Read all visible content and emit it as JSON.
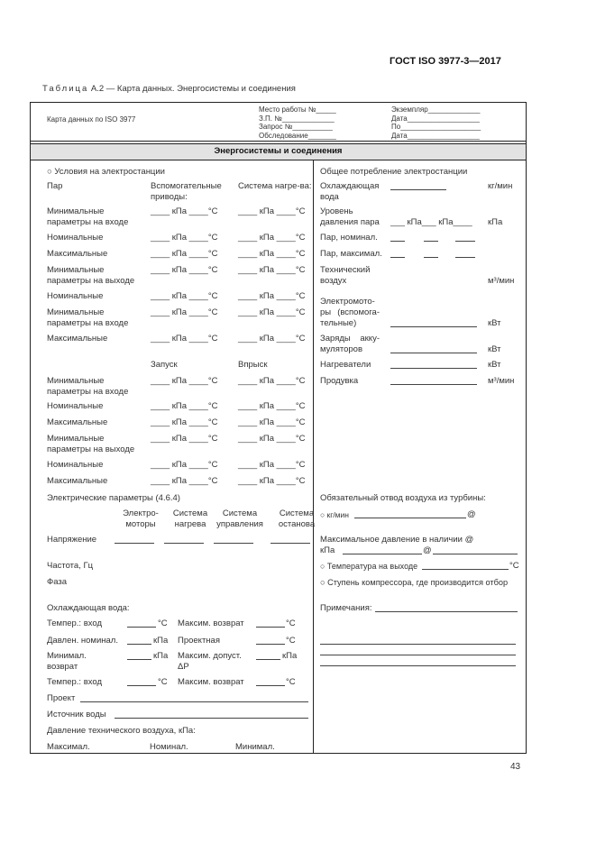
{
  "doc_id": "ГОСТ ISO 3977-3—2017",
  "caption": {
    "prefix": "Таблица",
    "text": "А.2 — Карта данных. Энергосистемы и соединения"
  },
  "header": {
    "card_label": "Карта данных по ISO 3977",
    "fields_mid": [
      "Место работы №_____",
      "З.П. №_____________",
      "Запрос №__________",
      "Обследование_______"
    ],
    "fields_right": [
      "Экземпляр_____________",
      "Дата__________________",
      "По____________________",
      "Дата__________________"
    ]
  },
  "section_title": "Энергосистемы и соединения",
  "left": {
    "title": "○ Условия на электростанции",
    "steam_label": "Пар",
    "group1": {
      "col1": "Вспомогательные приводы:",
      "col2": "Система нагре-ва:",
      "rows": [
        {
          "label": "Минимальные параметры на входе",
          "v1": "____ кПа ____°С",
          "v2": "____ кПа ____°С"
        },
        {
          "label": "Номинальные",
          "v1": "____ кПа ____°С",
          "v2": "____ кПа ____°С"
        },
        {
          "label": "Максимальные",
          "v1": "____ кПа ____°С",
          "v2": "____ кПа ____°С"
        },
        {
          "label": "Минимальные параметры на выходе",
          "v1": "____ кПа ____°С",
          "v2": "____ кПа ____°С"
        },
        {
          "label": "Номинальные",
          "v1": "____ кПа ____°С",
          "v2": "____ кПа ____°С"
        },
        {
          "label": "Минимальные параметры на входе",
          "v1": "____ кПа ____°С",
          "v2": "____ кПа ____°С"
        },
        {
          "label": "Максимальные",
          "v1": "____ кПа ____°С",
          "v2": "____ кПа ____°С"
        }
      ]
    },
    "group2": {
      "col1": "Запуск",
      "col2": "Впрыск",
      "rows": [
        {
          "label": "Минимальные параметры на входе",
          "v1": "____ кПа ____°С",
          "v2": "____ кПа ____°С"
        },
        {
          "label": "Номинальные",
          "v1": "____ кПа ____°С",
          "v2": "____ кПа ____°С"
        },
        {
          "label": "Максимальные",
          "v1": "____ кПа ____°С",
          "v2": "____ кПа ____°С"
        },
        {
          "label": "Минимальные параметры на выходе",
          "v1": "____ кПа ____°С",
          "v2": "____ кПа ____°С"
        },
        {
          "label": "Номинальные",
          "v1": "____ кПа ____°С",
          "v2": "____ кПа ____°С"
        },
        {
          "label": "Максимальные",
          "v1": "____ кПа ____°С",
          "v2": "____ кПа ____°С"
        }
      ]
    },
    "electrical": {
      "title": "Электрические параметры (4.6.4)",
      "cols": [
        "Электро-моторы",
        "Система нагрева",
        "Система управления",
        "Система останова"
      ],
      "voltage": "Напряжение",
      "frequency": "Частота, Гц",
      "phase": "Фаза"
    },
    "cooling": {
      "title": "Охлаждающая вода:",
      "rows": [
        {
          "l1": "Темпер.: вход",
          "u1": "°С",
          "l2": "Максим. возврат",
          "u2": "°С"
        },
        {
          "l1": "Давлен. номинал.",
          "u1": "кПа",
          "l2": "Проектная",
          "u2": "°С"
        },
        {
          "l1": "Минимал. возврат",
          "u1": "кПа",
          "l2": "Максим. допуст. ΔP",
          "u2": "кПа"
        },
        {
          "l1": "Темпер.: вход",
          "u1": "°С",
          "l2": "Максим. возврат",
          "u2": "°С"
        }
      ],
      "project": "Проект",
      "source": "Источник воды"
    },
    "air": {
      "title": "Давление технического воздуха, кПа:",
      "max": "Максимал.",
      "nom": "Номинал.",
      "min": "Минимал."
    }
  },
  "right": {
    "title": "Общее потребление электростанции",
    "cooling_water": "Охлаждающая вода",
    "cooling_water_unit": "кг/мин",
    "steam_level": "Уровень давления пара",
    "steam_level_fields": "___ кПа___ кПа____",
    "steam_level_unit": "кПа",
    "steam_nom": "Пар, номинал.",
    "steam_max": "Пар, максимал.",
    "tech_air": "Технический воздух",
    "tech_air_unit": "м³/мин",
    "motors": "Электромото-ры (вспомога-тельные)",
    "motors_unit": "кВт",
    "batteries": "Заряды акку-муляторов",
    "batteries_unit": "кВт",
    "heaters": "Нагреватели",
    "heaters_unit": "кВт",
    "purge": "Продувка",
    "purge_unit": "м³/мин",
    "bleed_title": "Обязательный отвод воздуха из турбины:",
    "bleed_kg": "○ кг/мин",
    "at": "@",
    "max_pressure": "Максимальное давление в наличии @",
    "kpa": "кПа",
    "outlet_temp": "○ Температура на выходе",
    "deg": "°С",
    "stage": "○ Ступень компрессора, где производится отбор",
    "notes": "Примечания:"
  },
  "page_number": "43"
}
